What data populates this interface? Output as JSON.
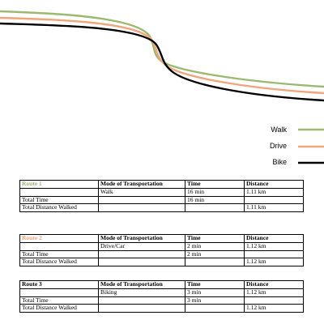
{
  "chart_data": {
    "type": "line",
    "series": [
      {
        "name": "Walk",
        "color": "#9bba6f"
      },
      {
        "name": "Drive",
        "color": "#f0a57a"
      },
      {
        "name": "Bike",
        "color": "#000000"
      }
    ],
    "legend_position": "right"
  },
  "tables": [
    {
      "route_label": "Route 1",
      "route_color": "#9bba6f",
      "headers": {
        "mode": "Mode of Transportation",
        "time": "Time",
        "distance": "Distance"
      },
      "row1": {
        "mode": "Walk",
        "time": "16 min",
        "distance": "1.11 km"
      },
      "total_time_label": "Total Time",
      "total_time": "16 min",
      "total_distance_label": "Total Distance Walked",
      "total_distance": "1.11 km"
    },
    {
      "route_label": "Route 2",
      "route_color": "#f0a57a",
      "headers": {
        "mode": "Mode of Transportation",
        "time": "Time",
        "distance": "Distance"
      },
      "row1": {
        "mode": "Drive/Car",
        "time": "2 min",
        "distance": "1.12 km"
      },
      "total_time_label": "Total Time",
      "total_time": "2 min",
      "total_distance_label": "Total Distance Walked",
      "total_distance": "1.12 km"
    },
    {
      "route_label": "Route 3",
      "route_color": "#000000",
      "headers": {
        "mode": "Mode of Transportation",
        "time": "Time",
        "distance": "Distance"
      },
      "row1": {
        "mode": "Biking",
        "time": "3 min",
        "distance": "1.12 km"
      },
      "total_time_label": "Total Time",
      "total_time": "3 min",
      "total_distance_label": "Total Distance Walked",
      "total_distance": "1.12 km"
    }
  ]
}
